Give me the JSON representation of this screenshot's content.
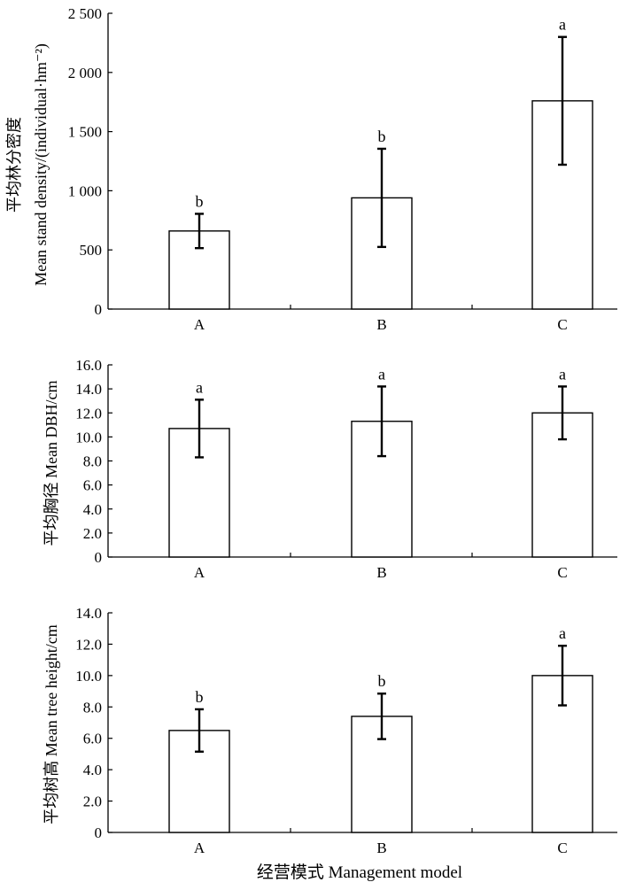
{
  "chart_data": [
    {
      "type": "bar",
      "panel": "top",
      "ylabel_cn": "平均林分密度",
      "ylabel_en": "Mean stand density/(individual·hm⁻²)",
      "categories": [
        "A",
        "B",
        "C"
      ],
      "values": [
        660,
        940,
        1760
      ],
      "errors": [
        145,
        415,
        540
      ],
      "significance": [
        "b",
        "b",
        "a"
      ],
      "ylim": [
        0,
        2500
      ],
      "ytick_values": [
        0,
        500,
        1000,
        1500,
        2000,
        2500
      ],
      "ytick_labels": [
        "0",
        "500",
        "1 000",
        "1 500",
        "2 000",
        "2 500"
      ]
    },
    {
      "type": "bar",
      "panel": "middle",
      "ylabel": "平均胸径 Mean DBH/cm",
      "categories": [
        "A",
        "B",
        "C"
      ],
      "values": [
        10.7,
        11.3,
        12.0
      ],
      "errors": [
        2.4,
        2.9,
        2.2
      ],
      "significance": [
        "a",
        "a",
        "a"
      ],
      "ylim": [
        0,
        16
      ],
      "ytick_values": [
        0,
        2,
        4,
        6,
        8,
        10,
        12,
        14,
        16
      ],
      "ytick_labels": [
        "0",
        "2.0",
        "4.0",
        "6.0",
        "8.0",
        "10.0",
        "12.0",
        "14.0",
        "16.0"
      ]
    },
    {
      "type": "bar",
      "panel": "bottom",
      "ylabel": "平均树高 Mean tree height/cm",
      "categories": [
        "A",
        "B",
        "C"
      ],
      "values": [
        6.5,
        7.4,
        10.0
      ],
      "errors": [
        1.35,
        1.45,
        1.9
      ],
      "significance": [
        "b",
        "b",
        "a"
      ],
      "ylim": [
        0,
        14
      ],
      "ytick_values": [
        0,
        2,
        4,
        6,
        8,
        10,
        12,
        14
      ],
      "ytick_labels": [
        "0",
        "2.0",
        "4.0",
        "6.0",
        "8.0",
        "10.0",
        "12.0",
        "14.0"
      ]
    }
  ],
  "xlabel": "经营模式 Management model"
}
